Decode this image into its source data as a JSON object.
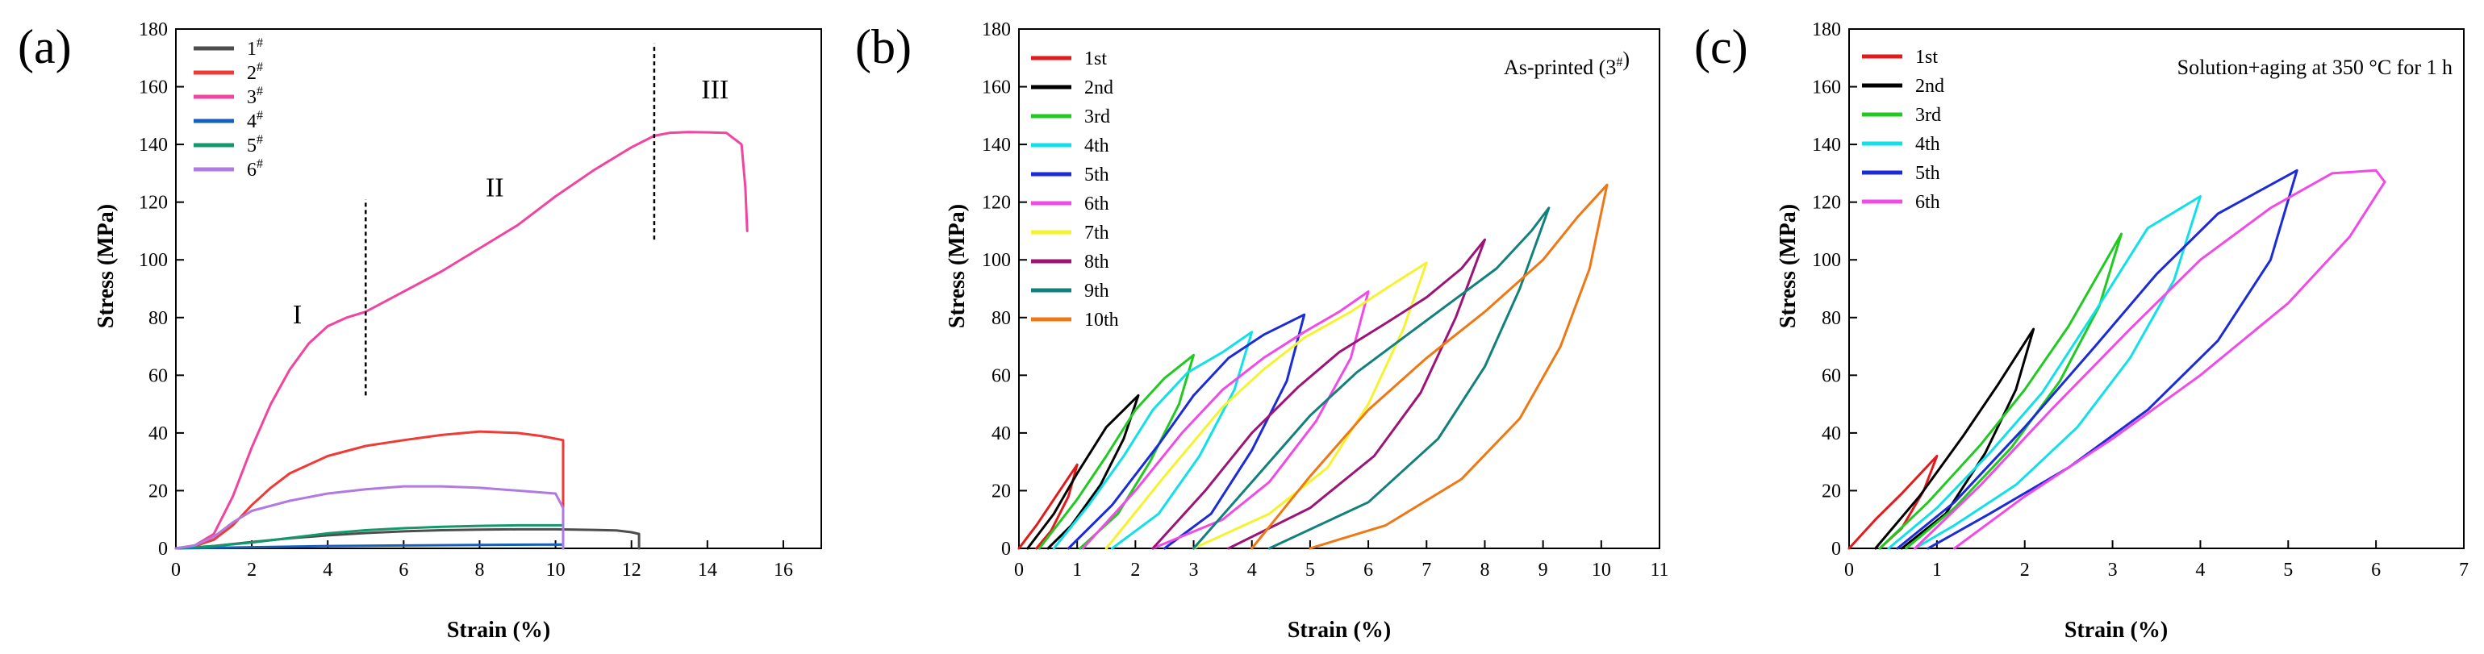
{
  "chart_data": [
    {
      "type": "line",
      "panel_label": "(a)",
      "xlabel": "Strain (%)",
      "ylabel": "Stress (MPa)",
      "xlim": [
        0,
        17
      ],
      "ylim": [
        0,
        180
      ],
      "xticks": [
        "0",
        "2",
        "4",
        "6",
        "8",
        "10",
        "12",
        "14",
        "16"
      ],
      "yticks": [
        "0",
        "20",
        "40",
        "60",
        "80",
        "100",
        "120",
        "140",
        "160",
        "180"
      ],
      "legend_position": "top-left",
      "region_labels": [
        {
          "text": "I",
          "x": 3.2,
          "y": 78
        },
        {
          "text": "II",
          "x": 8.4,
          "y": 122
        },
        {
          "text": "III",
          "x": 14.2,
          "y": 156
        }
      ],
      "divider_lines": [
        {
          "x": 5.0,
          "y0": 53,
          "y1": 121
        },
        {
          "x": 12.6,
          "y0": 107,
          "y1": 175
        }
      ],
      "series": [
        {
          "name": "1#",
          "color": "#4d4d4d",
          "x": [
            0,
            0.5,
            1,
            1.5,
            2,
            3,
            4,
            5,
            6,
            7,
            8,
            9,
            10,
            11,
            11.6,
            12.0,
            12.2,
            12.2
          ],
          "y": [
            0,
            0.3,
            0.8,
            1.5,
            2.2,
            3.5,
            4.5,
            5.3,
            5.9,
            6.3,
            6.5,
            6.6,
            6.6,
            6.4,
            6.2,
            5.6,
            5.0,
            0
          ]
        },
        {
          "name": "2#",
          "color": "#ef3b36",
          "x": [
            0,
            0.5,
            1,
            1.5,
            2,
            2.5,
            3,
            4,
            5,
            6,
            7,
            8,
            9,
            9.6,
            10.0,
            10.2,
            10.2
          ],
          "y": [
            0,
            0.8,
            3,
            8,
            15,
            21,
            26,
            32,
            35.5,
            37.5,
            39.3,
            40.5,
            40,
            39,
            38,
            37.5,
            0
          ]
        },
        {
          "name": "3#",
          "color": "#f0449f",
          "x": [
            0,
            0.5,
            1.0,
            1.5,
            2.0,
            2.5,
            3.0,
            3.5,
            4.0,
            4.5,
            5.0,
            6.0,
            7.0,
            8.0,
            9.0,
            10.0,
            11.0,
            12.0,
            12.6,
            13.0,
            13.5,
            14.0,
            14.5,
            14.9,
            15.0,
            15.05
          ],
          "y": [
            0,
            1,
            5,
            18,
            35,
            50,
            62,
            71,
            77,
            80,
            82,
            89,
            96,
            104,
            112,
            122,
            131,
            139,
            143,
            144,
            144.3,
            144.2,
            144,
            140,
            125,
            110
          ]
        },
        {
          "name": "4#",
          "color": "#1560bd",
          "x": [
            0,
            1,
            2,
            4,
            6,
            8,
            10.2,
            10.2
          ],
          "y": [
            0,
            0.2,
            0.4,
            0.8,
            1.0,
            1.2,
            1.3,
            0
          ]
        },
        {
          "name": "5#",
          "color": "#14976d",
          "x": [
            0,
            1,
            2,
            3,
            4,
            5,
            6,
            7,
            8,
            9,
            10.2,
            10.2
          ],
          "y": [
            0,
            0.8,
            2,
            3.6,
            5.2,
            6.3,
            7.0,
            7.5,
            7.8,
            8.0,
            8.0,
            0
          ]
        },
        {
          "name": "6#",
          "color": "#b07ae0",
          "x": [
            0,
            0.5,
            1,
            1.5,
            2,
            3,
            4,
            5,
            6,
            7,
            8,
            9,
            10,
            10.2,
            10.2
          ],
          "y": [
            0,
            1,
            4,
            9,
            13,
            16.5,
            19,
            20.5,
            21.5,
            21.5,
            21,
            20,
            19,
            14,
            0
          ]
        }
      ]
    },
    {
      "type": "line",
      "panel_label": "(b)",
      "xlabel": "Strain (%)",
      "ylabel": "Stress (MPa)",
      "annotation": "As-printed (3#)",
      "xlim": [
        0,
        11
      ],
      "ylim": [
        0,
        180
      ],
      "xticks": [
        "0",
        "1",
        "2",
        "3",
        "4",
        "5",
        "6",
        "7",
        "8",
        "9",
        "10",
        "11"
      ],
      "yticks": [
        "0",
        "20",
        "40",
        "60",
        "80",
        "100",
        "120",
        "140",
        "160",
        "180"
      ],
      "legend_position": "top-left",
      "series": [
        {
          "name": "1st",
          "color": "#e31a1c",
          "x": [
            0,
            0.3,
            0.6,
            1.0,
            0.85,
            0.55,
            0.3
          ],
          "y": [
            0,
            8,
            17,
            29,
            18,
            6,
            0
          ]
        },
        {
          "name": "2nd",
          "color": "#000000",
          "x": [
            0.15,
            0.6,
            1.0,
            1.5,
            2.05,
            1.8,
            1.4,
            0.9,
            0.5
          ],
          "y": [
            0,
            12,
            26,
            42,
            53,
            38,
            22,
            8,
            0
          ]
        },
        {
          "name": "3rd",
          "color": "#22c922",
          "x": [
            0.35,
            1.0,
            1.5,
            2.0,
            2.5,
            3.0,
            2.75,
            2.25,
            1.7,
            1.05
          ],
          "y": [
            0,
            17,
            32,
            48,
            59,
            67,
            50,
            30,
            12,
            0
          ]
        },
        {
          "name": "4th",
          "color": "#12e0e8",
          "x": [
            0.6,
            1.2,
            1.8,
            2.3,
            2.9,
            3.5,
            4.0,
            3.7,
            3.1,
            2.4,
            1.6
          ],
          "y": [
            0,
            15,
            32,
            48,
            61,
            68,
            75,
            55,
            32,
            12,
            0
          ]
        },
        {
          "name": "5th",
          "color": "#1c2bd8",
          "x": [
            0.85,
            1.6,
            2.4,
            3.0,
            3.6,
            4.2,
            4.9,
            4.6,
            4.0,
            3.3,
            2.5
          ],
          "y": [
            0,
            15,
            36,
            53,
            66,
            74,
            81,
            58,
            34,
            12,
            0
          ]
        },
        {
          "name": "6th",
          "color": "#f04be6",
          "x": [
            1.1,
            2.0,
            2.8,
            3.5,
            4.2,
            4.9,
            5.5,
            6.0,
            5.7,
            5.1,
            4.3,
            3.5,
            2.3
          ],
          "y": [
            0,
            20,
            40,
            55,
            66,
            75,
            82,
            89,
            66,
            44,
            23,
            10,
            0
          ]
        },
        {
          "name": "7th",
          "color": "#f5f32e",
          "x": [
            1.5,
            2.5,
            3.5,
            4.2,
            4.9,
            5.7,
            6.3,
            7.0,
            6.6,
            6.0,
            5.3,
            4.3,
            3.0
          ],
          "y": [
            0,
            25,
            49,
            62,
            73,
            82,
            90,
            99,
            76,
            50,
            28,
            12,
            0
          ]
        },
        {
          "name": "8th",
          "color": "#9c1477",
          "x": [
            2.3,
            3.2,
            4.0,
            4.8,
            5.5,
            6.3,
            7.0,
            7.6,
            8.0,
            7.5,
            6.9,
            6.1,
            5.0,
            3.6
          ],
          "y": [
            0,
            20,
            40,
            56,
            68,
            78,
            87,
            97,
            107,
            80,
            54,
            32,
            14,
            0
          ]
        },
        {
          "name": "9th",
          "color": "#11817b",
          "x": [
            3.0,
            4.0,
            5.0,
            5.8,
            6.6,
            7.4,
            8.2,
            8.8,
            9.1,
            8.6,
            8.0,
            7.2,
            6.0,
            4.3
          ],
          "y": [
            0,
            23,
            46,
            61,
            73,
            85,
            97,
            110,
            118,
            90,
            63,
            38,
            16,
            0
          ]
        },
        {
          "name": "10th",
          "color": "#f07814",
          "x": [
            4.0,
            5.0,
            6.0,
            7.0,
            8.0,
            9.0,
            9.6,
            10.1,
            9.8,
            9.3,
            8.6,
            7.6,
            6.3,
            5.0
          ],
          "y": [
            0,
            25,
            48,
            66,
            82,
            100,
            115,
            126,
            97,
            70,
            45,
            24,
            8,
            0
          ]
        }
      ]
    },
    {
      "type": "line",
      "panel_label": "(c)",
      "xlabel": "Strain (%)",
      "ylabel": "Stress (MPa)",
      "annotation": "Solution+aging at 350 °C for 1 h",
      "xlim": [
        0,
        7
      ],
      "ylim": [
        0,
        180
      ],
      "xticks": [
        "0",
        "1",
        "2",
        "3",
        "4",
        "5",
        "6",
        "7"
      ],
      "yticks": [
        "0",
        "20",
        "40",
        "60",
        "80",
        "100",
        "120",
        "140",
        "160",
        "180"
      ],
      "legend_position": "top-left",
      "series": [
        {
          "name": "1st",
          "color": "#e31a1c",
          "x": [
            0,
            0.3,
            0.6,
            1.0,
            0.85,
            0.6,
            0.35
          ],
          "y": [
            0,
            10,
            19,
            32,
            20,
            7,
            0
          ]
        },
        {
          "name": "2nd",
          "color": "#000000",
          "x": [
            0.3,
            0.8,
            1.3,
            1.7,
            2.1,
            1.9,
            1.55,
            1.1,
            0.6
          ],
          "y": [
            0,
            18,
            39,
            57,
            76,
            55,
            33,
            12,
            0
          ]
        },
        {
          "name": "3rd",
          "color": "#22c922",
          "x": [
            0.35,
            0.9,
            1.5,
            2.0,
            2.5,
            3.1,
            2.85,
            2.4,
            1.85,
            1.2,
            0.65
          ],
          "y": [
            0,
            16,
            36,
            55,
            77,
            109,
            84,
            58,
            35,
            14,
            0
          ]
        },
        {
          "name": "4th",
          "color": "#12e0e8",
          "x": [
            0.45,
            1.0,
            1.6,
            2.2,
            2.8,
            3.4,
            4.0,
            3.7,
            3.2,
            2.6,
            1.9,
            1.2,
            0.75
          ],
          "y": [
            0,
            14,
            33,
            54,
            82,
            111,
            122,
            93,
            66,
            42,
            22,
            8,
            0
          ]
        },
        {
          "name": "5th",
          "color": "#1c2bd8",
          "x": [
            0.55,
            1.2,
            2.0,
            2.8,
            3.5,
            4.2,
            5.1,
            4.8,
            4.2,
            3.4,
            2.5,
            1.6,
            0.9
          ],
          "y": [
            0,
            16,
            42,
            70,
            95,
            116,
            131,
            100,
            72,
            48,
            28,
            12,
            0
          ]
        },
        {
          "name": "6th",
          "color": "#f04be6",
          "x": [
            0.75,
            1.5,
            2.3,
            3.2,
            4.0,
            4.8,
            5.5,
            6.0,
            6.1,
            5.7,
            5.0,
            4.0,
            3.0,
            2.0,
            1.2
          ],
          "y": [
            0,
            22,
            48,
            76,
            100,
            118,
            130,
            131,
            127,
            108,
            85,
            60,
            38,
            18,
            0
          ]
        }
      ]
    }
  ]
}
